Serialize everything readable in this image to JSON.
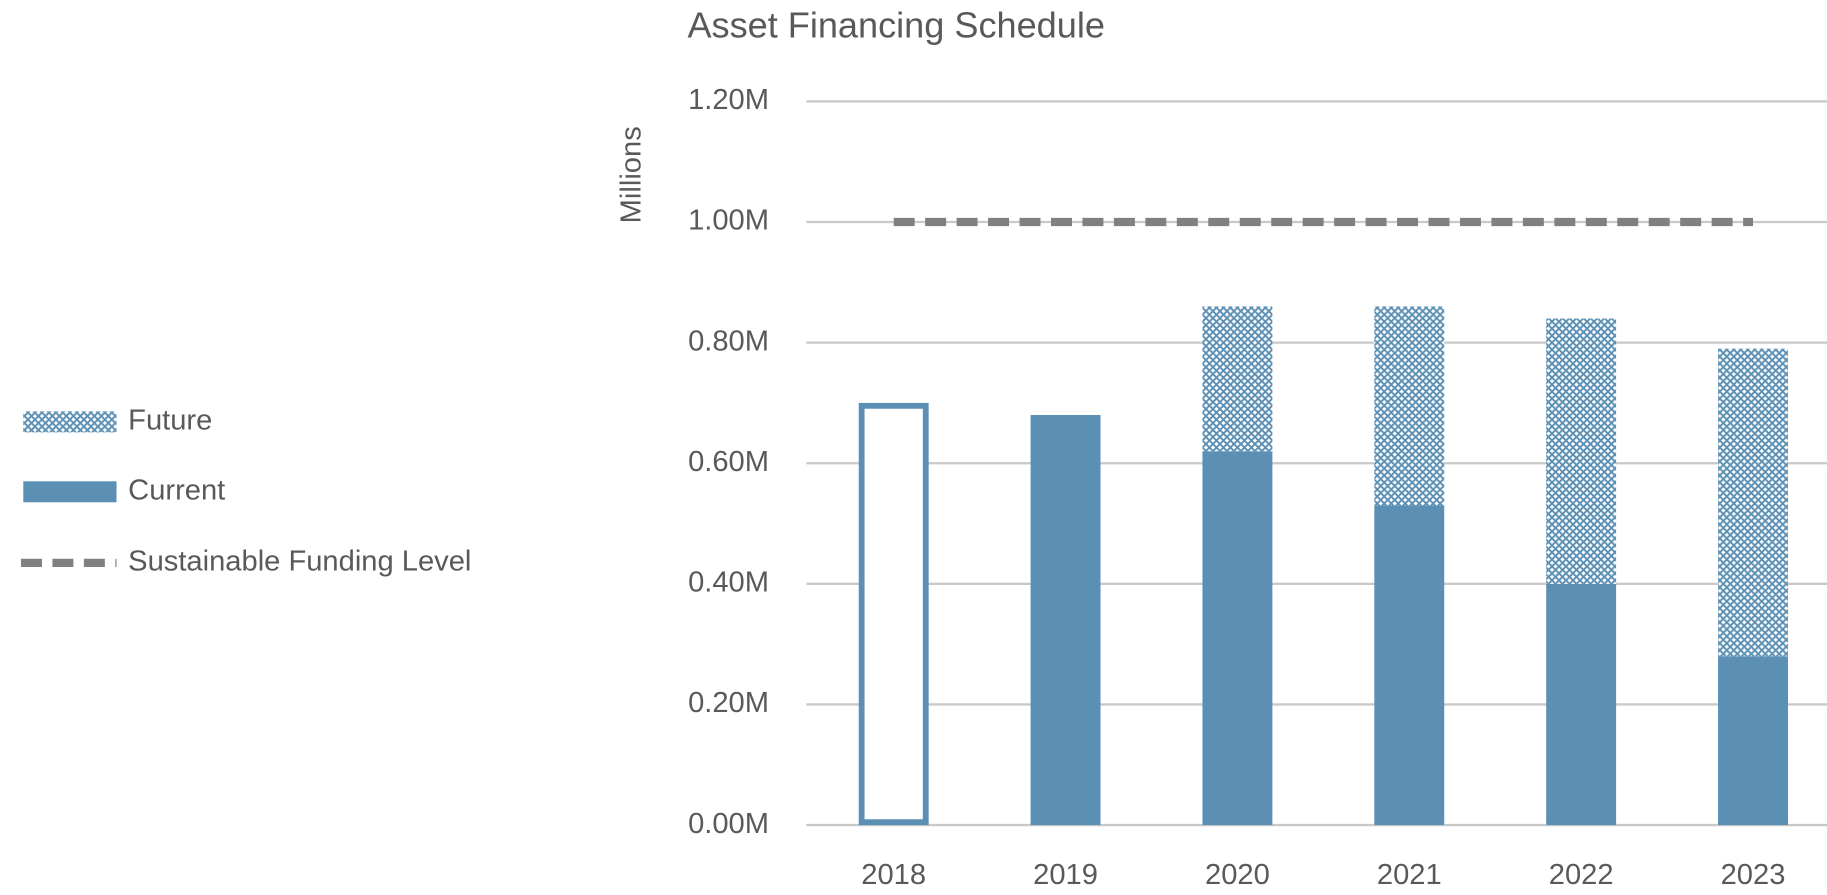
{
  "chart_data": {
    "type": "stacked_bar",
    "title": "Asset Financing Schedule",
    "y_label": "Millions",
    "categories": [
      "2018",
      "2019",
      "2020",
      "2021",
      "2022",
      "2023"
    ],
    "series": [
      {
        "name": "Current",
        "color": "#5b8fb4",
        "hollow_index": 0,
        "values": [
          0.7,
          0.68,
          0.62,
          0.53,
          0.4,
          0.28
        ]
      },
      {
        "name": "Future",
        "color": "#5b8fb4",
        "pattern": "crosshatch",
        "values": [
          null,
          null,
          0.24,
          0.33,
          0.44,
          0.51
        ]
      },
      {
        "name": "Sustainable Funding Level",
        "type": "line",
        "color": "#808080",
        "dashed": true,
        "values": [
          1.0,
          1.0,
          1.0,
          1.0,
          1.0,
          1.0
        ]
      }
    ],
    "legend_order": [
      1,
      0,
      2
    ],
    "ylim": [
      0,
      1.2
    ],
    "yticks": [
      {
        "value": 0,
        "label": "0.00M"
      },
      {
        "value": 0.2,
        "label": "0.20M"
      },
      {
        "value": 0.4,
        "label": "0.40M"
      },
      {
        "value": 0.6,
        "label": "0.60M"
      },
      {
        "value": 0.8,
        "label": "0.80M"
      },
      {
        "value": 1.0,
        "label": "1.00M"
      },
      {
        "value": 1.2,
        "label": "1.20M"
      }
    ],
    "grid": true,
    "legend": "left"
  }
}
